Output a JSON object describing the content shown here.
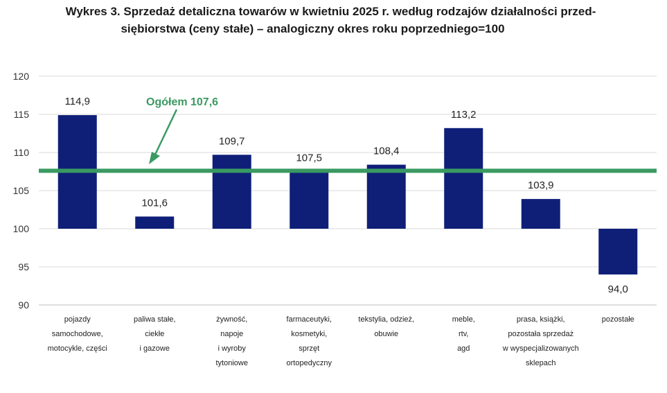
{
  "title_lines": [
    "Wykres 3. Sprzedaż detaliczna towarów w kwietniu 2025 r. według rodzajów działalności przed-",
    "siębiorstwa (ceny stałe) – analogiczny okres roku poprzedniego=100"
  ],
  "colors": {
    "bar": "#0f1f78",
    "reference": "#3a9a62",
    "grid": "#d9d9d9",
    "axis": "#bfbfbf"
  },
  "chart_data": {
    "type": "bar",
    "title": "Wykres 3. Sprzedaż detaliczna towarów w kwietniu 2025 r. według rodzajów działalności przedsiębiorstwa (ceny stałe) – analogiczny okres roku poprzedniego=100",
    "baseline": 100,
    "ylim": [
      90,
      120
    ],
    "yticks": [
      90,
      95,
      100,
      105,
      110,
      115,
      120
    ],
    "grid": true,
    "categories": [
      [
        "pojazdy",
        "samochodowe,",
        "motocykle,  części"
      ],
      [
        "paliwa stałe,",
        "ciekłe",
        "i gazowe"
      ],
      [
        "żywność,",
        "napoje",
        "i wyroby",
        "tytoniowe"
      ],
      [
        "farmaceutyki,",
        "kosmetyki,",
        "sprzęt",
        "ortopedyczny"
      ],
      [
        "tekstylia,  odzież,",
        "obuwie"
      ],
      [
        "meble,",
        "rtv,",
        "agd"
      ],
      [
        "prasa,  książki,",
        "pozostała  sprzedaż",
        "w wyspecjalizowanych",
        "sklepach"
      ],
      [
        "pozostałe"
      ]
    ],
    "values": [
      114.9,
      101.6,
      109.7,
      107.5,
      108.4,
      113.2,
      103.9,
      94.0
    ],
    "value_labels": [
      "114,9",
      "101,6",
      "109,7",
      "107,5",
      "108,4",
      "113,2",
      "103,9",
      "94,0"
    ],
    "reference": {
      "label": "Ogółem 107,6",
      "value": 107.6
    }
  }
}
